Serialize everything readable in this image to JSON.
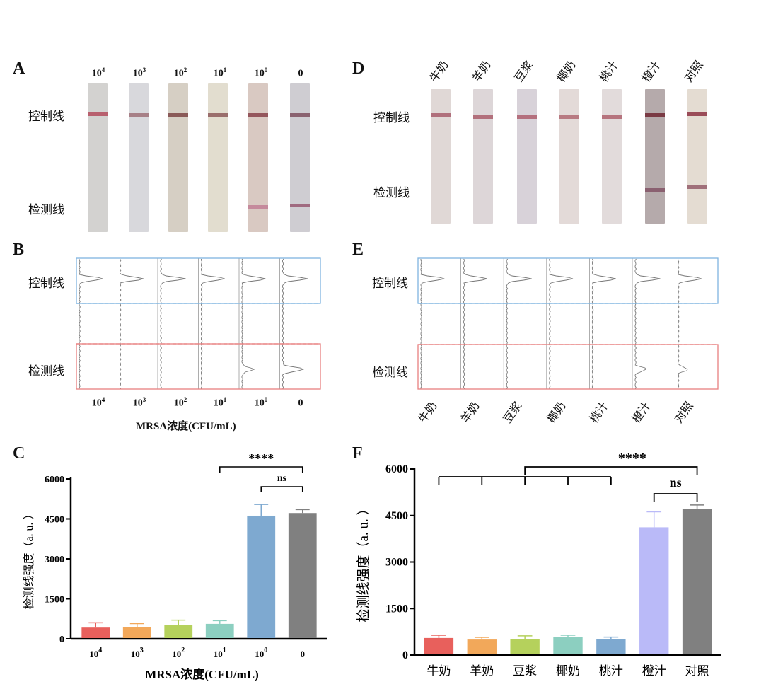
{
  "panel_labels": {
    "A": "A",
    "B": "B",
    "C": "C",
    "D": "D",
    "E": "E",
    "F": "F"
  },
  "line_labels": {
    "control": "控制线",
    "test": "检测线"
  },
  "concentration_labels": [
    {
      "base": "10",
      "exp": "4"
    },
    {
      "base": "10",
      "exp": "3"
    },
    {
      "base": "10",
      "exp": "2"
    },
    {
      "base": "10",
      "exp": "1"
    },
    {
      "base": "10",
      "exp": "0"
    },
    {
      "base": "0",
      "exp": ""
    }
  ],
  "sample_labels": [
    "牛奶",
    "羊奶",
    "豆浆",
    "椰奶",
    "桃汁",
    "橙汁",
    "对照"
  ],
  "mrsa_axis_label": "MRSA浓度(CFU/mL)",
  "colors": {
    "red": "#e8605c",
    "orange": "#f2a85a",
    "green": "#b5d15c",
    "teal": "#8ccfc0",
    "blue": "#7ea9d0",
    "gray": "#808080",
    "purple": "#babaf8",
    "box_blue": "#7fb4e0",
    "box_red": "#e87f7f"
  },
  "chart_data": [
    {
      "type": "bar",
      "panel": "C",
      "categories": [
        "10^4",
        "10^3",
        "10^2",
        "10^1",
        "10^0",
        "0"
      ],
      "values": [
        420,
        450,
        520,
        560,
        4620,
        4720
      ],
      "errors": [
        180,
        120,
        180,
        120,
        420,
        130
      ],
      "colors": [
        "#e8605c",
        "#f2a85a",
        "#b5d15c",
        "#8ccfc0",
        "#7ea9d0",
        "#808080"
      ],
      "ylabel": "检测线强度（a. u. ）",
      "xlabel": "MRSA浓度(CFU/mL)",
      "ylim": [
        0,
        6000
      ],
      "yticks": [
        "0",
        "1500",
        "3000",
        "4500",
        "6000"
      ],
      "annotations": [
        "****",
        "ns"
      ]
    },
    {
      "type": "bar",
      "panel": "F",
      "categories": [
        "牛奶",
        "羊奶",
        "豆浆",
        "椰奶",
        "桃汁",
        "橙汁",
        "对照"
      ],
      "values": [
        550,
        500,
        520,
        580,
        520,
        4120,
        4720
      ],
      "errors": [
        90,
        70,
        100,
        60,
        60,
        500,
        120
      ],
      "colors": [
        "#e8605c",
        "#f2a85a",
        "#b5d15c",
        "#8ccfc0",
        "#7ea9d0",
        "#babaf8",
        "#808080"
      ],
      "ylabel": "检测线强度（a. u. ）",
      "ylim": [
        0,
        6000
      ],
      "yticks": [
        "0",
        "1500",
        "3000",
        "4500",
        "6000"
      ],
      "annotations": [
        "****",
        "ns"
      ]
    }
  ]
}
